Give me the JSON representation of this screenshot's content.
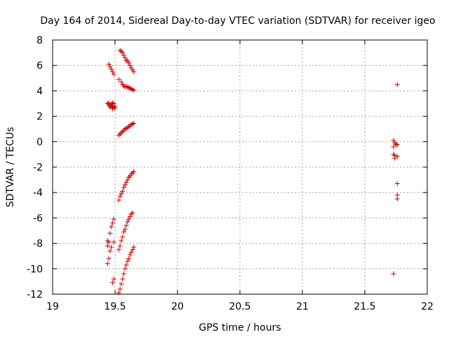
{
  "chart_data": {
    "type": "scatter",
    "title": "Day 164 of 2014, Sidereal Day-to-day VTEC variation (SDTVAR) for receiver igeo",
    "xlabel": "GPS time / hours",
    "ylabel": "SDTVAR / TECUs",
    "xlim": [
      19,
      22
    ],
    "ylim": [
      -12,
      8
    ],
    "xticks": [
      "19",
      "19.5",
      "20",
      "20.5",
      "21",
      "21.5",
      "22"
    ],
    "xtick_values": [
      19,
      19.5,
      20,
      20.5,
      21,
      21.5,
      22
    ],
    "yticks": [
      "8",
      "6",
      "4",
      "2",
      "0",
      "-2",
      "-4",
      "-6",
      "-8",
      "-10",
      "-12"
    ],
    "ytick_values": [
      8,
      6,
      4,
      2,
      0,
      -2,
      -4,
      -6,
      -8,
      -10,
      -12
    ],
    "grid": true,
    "marker": "+",
    "marker_color": "#cc0000",
    "series": [
      {
        "points": [
          [
            19.54,
            7.2
          ],
          [
            19.55,
            7.1
          ],
          [
            19.56,
            7.0
          ],
          [
            19.57,
            6.8
          ],
          [
            19.58,
            6.6
          ],
          [
            19.59,
            6.4
          ],
          [
            19.6,
            6.35
          ],
          [
            19.61,
            6.2
          ],
          [
            19.62,
            6.0
          ],
          [
            19.63,
            5.8
          ],
          [
            19.64,
            5.65
          ],
          [
            19.65,
            5.5
          ],
          [
            19.45,
            6.1
          ],
          [
            19.46,
            5.9
          ],
          [
            19.47,
            5.7
          ],
          [
            19.48,
            5.5
          ],
          [
            19.49,
            5.3
          ],
          [
            19.53,
            4.9
          ],
          [
            19.55,
            4.7
          ],
          [
            19.56,
            4.5
          ],
          [
            19.57,
            4.4
          ],
          [
            19.58,
            4.3
          ],
          [
            19.59,
            4.35
          ],
          [
            19.6,
            4.3
          ],
          [
            19.61,
            4.25
          ],
          [
            19.62,
            4.2
          ],
          [
            19.63,
            4.15
          ],
          [
            19.64,
            4.1
          ],
          [
            19.65,
            4.05
          ],
          [
            19.44,
            3.0
          ],
          [
            19.45,
            2.9
          ],
          [
            19.46,
            2.85
          ],
          [
            19.47,
            2.8
          ],
          [
            19.48,
            2.75
          ],
          [
            19.49,
            2.7
          ],
          [
            19.45,
            3.05
          ],
          [
            19.46,
            2.7
          ],
          [
            19.47,
            2.95
          ],
          [
            19.48,
            2.6
          ],
          [
            19.49,
            3.0
          ],
          [
            19.5,
            2.8
          ],
          [
            19.48,
            3.05
          ],
          [
            19.5,
            2.65
          ],
          [
            19.53,
            0.5
          ],
          [
            19.54,
            0.6
          ],
          [
            19.55,
            0.7
          ],
          [
            19.56,
            0.8
          ],
          [
            19.57,
            0.9
          ],
          [
            19.58,
            1.0
          ],
          [
            19.59,
            1.05
          ],
          [
            19.6,
            1.1
          ],
          [
            19.61,
            1.2
          ],
          [
            19.62,
            1.25
          ],
          [
            19.63,
            1.35
          ],
          [
            19.64,
            1.4
          ],
          [
            19.65,
            1.45
          ],
          [
            19.53,
            -4.6
          ],
          [
            19.54,
            -4.3
          ],
          [
            19.55,
            -4.1
          ],
          [
            19.56,
            -3.9
          ],
          [
            19.57,
            -3.6
          ],
          [
            19.58,
            -3.4
          ],
          [
            19.59,
            -3.2
          ],
          [
            19.6,
            -3.0
          ],
          [
            19.61,
            -2.8
          ],
          [
            19.62,
            -2.7
          ],
          [
            19.63,
            -2.55
          ],
          [
            19.64,
            -2.45
          ],
          [
            19.65,
            -2.35
          ],
          [
            19.44,
            -9.6
          ],
          [
            19.44,
            -8.2
          ],
          [
            19.44,
            -7.8
          ],
          [
            19.45,
            -9.2
          ],
          [
            19.45,
            -7.9
          ],
          [
            19.46,
            -8.6
          ],
          [
            19.46,
            -7.2
          ],
          [
            19.47,
            -8.3
          ],
          [
            19.47,
            -6.7
          ],
          [
            19.48,
            -6.4
          ],
          [
            19.48,
            -11.1
          ],
          [
            19.49,
            -6.1
          ],
          [
            19.49,
            -10.8
          ],
          [
            19.49,
            -7.9
          ],
          [
            19.53,
            -8.5
          ],
          [
            19.54,
            -8.2
          ],
          [
            19.55,
            -7.8
          ],
          [
            19.56,
            -7.5
          ],
          [
            19.57,
            -7.1
          ],
          [
            19.58,
            -6.9
          ],
          [
            19.59,
            -6.6
          ],
          [
            19.6,
            -6.3
          ],
          [
            19.61,
            -6.1
          ],
          [
            19.62,
            -5.9
          ],
          [
            19.63,
            -5.7
          ],
          [
            19.64,
            -5.6
          ],
          [
            19.53,
            -11.9
          ],
          [
            19.54,
            -11.6
          ],
          [
            19.55,
            -11.2
          ],
          [
            19.56,
            -10.8
          ],
          [
            19.57,
            -10.4
          ],
          [
            19.58,
            -10.0
          ],
          [
            19.59,
            -9.7
          ],
          [
            19.6,
            -9.4
          ],
          [
            19.61,
            -9.2
          ],
          [
            19.62,
            -8.9
          ],
          [
            19.63,
            -8.7
          ],
          [
            19.64,
            -8.5
          ],
          [
            19.65,
            -8.3
          ],
          [
            21.73,
            0.1
          ],
          [
            21.74,
            -0.1
          ],
          [
            21.75,
            -0.2
          ],
          [
            21.76,
            -0.25
          ],
          [
            21.73,
            -0.4
          ],
          [
            21.73,
            -1.0
          ],
          [
            21.74,
            -1.1
          ],
          [
            21.74,
            -1.3
          ],
          [
            21.76,
            -1.15
          ],
          [
            21.76,
            4.5
          ],
          [
            21.76,
            -3.3
          ],
          [
            21.76,
            -4.2
          ],
          [
            21.76,
            -4.5
          ],
          [
            21.73,
            -10.4
          ]
        ]
      }
    ]
  }
}
